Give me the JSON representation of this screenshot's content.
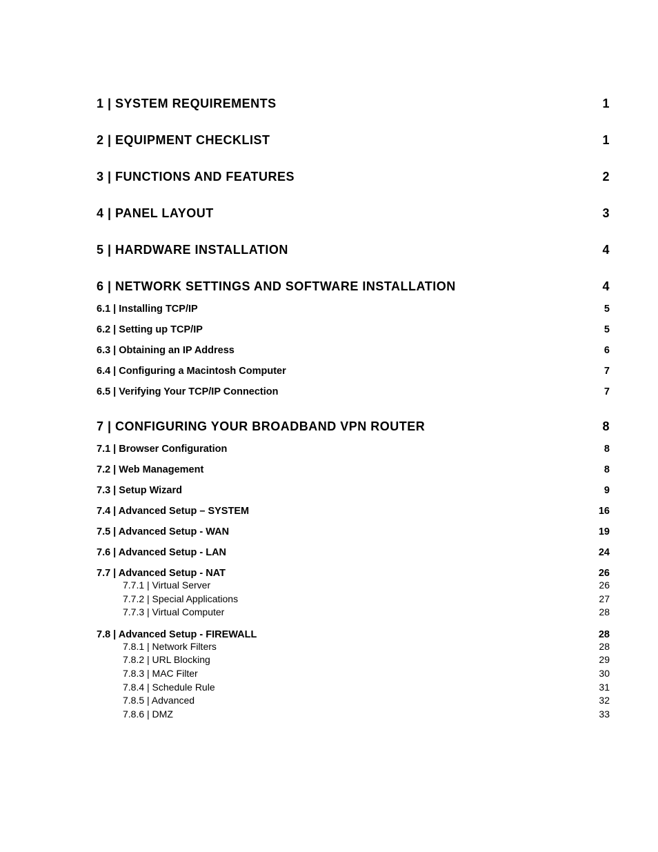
{
  "toc": {
    "background_color": "#ffffff",
    "text_color": "#000000",
    "level1_fontsize": 18,
    "level2_fontsize": 14.5,
    "level3_fontsize": 14,
    "entries": [
      {
        "level": 1,
        "title": "1 | SYSTEM REQUIREMENTS",
        "page": "1"
      },
      {
        "level": 1,
        "title": "2 | EQUIPMENT CHECKLIST",
        "page": "1"
      },
      {
        "level": 1,
        "title": "3 | FUNCTIONS AND FEATURES",
        "page": "2"
      },
      {
        "level": 1,
        "title": "4 | PANEL LAYOUT",
        "page": "3"
      },
      {
        "level": 1,
        "title": "5 | HARDWARE INSTALLATION",
        "page": "4"
      },
      {
        "level": 1,
        "title": "6 | NETWORK SETTINGS AND SOFTWARE INSTALLATION",
        "page": "4"
      },
      {
        "level": 2,
        "title": "6.1 | Installing TCP/IP",
        "page": "5"
      },
      {
        "level": 2,
        "title": "6.2 | Setting up TCP/IP",
        "page": "5"
      },
      {
        "level": 2,
        "title": "6.3 | Obtaining an IP Address",
        "page": "6"
      },
      {
        "level": 2,
        "title": "6.4 | Configuring a Macintosh Computer",
        "page": "7"
      },
      {
        "level": 2,
        "title": "6.5 | Verifying Your TCP/IP Connection",
        "page": "7"
      },
      {
        "level": 1,
        "title": "7 | CONFIGURING YOUR BROADBAND VPN ROUTER",
        "page": "8"
      },
      {
        "level": 2,
        "title": "7.1 | Browser Configuration",
        "page": "8"
      },
      {
        "level": 2,
        "title": "7.2 | Web Management",
        "page": "8"
      },
      {
        "level": 2,
        "title": "7.3 | Setup Wizard",
        "page": "9"
      },
      {
        "level": 2,
        "title": "7.4 | Advanced Setup – SYSTEM",
        "page": "16"
      },
      {
        "level": 2,
        "title": "7.5 | Advanced Setup - WAN",
        "page": "19"
      },
      {
        "level": 2,
        "title": "7.6 | Advanced Setup - LAN",
        "page": "24"
      },
      {
        "level": 2,
        "title": "7.7 | Advanced Setup - NAT",
        "page": "26",
        "group_start": true
      },
      {
        "level": 3,
        "title": "7.7.1 | Virtual Server",
        "page": "26"
      },
      {
        "level": 3,
        "title": "7.7.2 | Special Applications",
        "page": "27"
      },
      {
        "level": 3,
        "title": "7.7.3 | Virtual Computer",
        "page": "28"
      },
      {
        "level": 2,
        "title": "7.8 | Advanced Setup - FIREWALL",
        "page": "28",
        "group_start": true
      },
      {
        "level": 3,
        "title": "7.8.1 | Network Filters",
        "page": "28"
      },
      {
        "level": 3,
        "title": "7.8.2 | URL Blocking",
        "page": "29"
      },
      {
        "level": 3,
        "title": "7.8.3 | MAC Filter",
        "page": "30"
      },
      {
        "level": 3,
        "title": "7.8.4 | Schedule Rule",
        "page": "31"
      },
      {
        "level": 3,
        "title": "7.8.5 | Advanced",
        "page": "32"
      },
      {
        "level": 3,
        "title": "7.8.6 | DMZ",
        "page": "33"
      }
    ]
  }
}
